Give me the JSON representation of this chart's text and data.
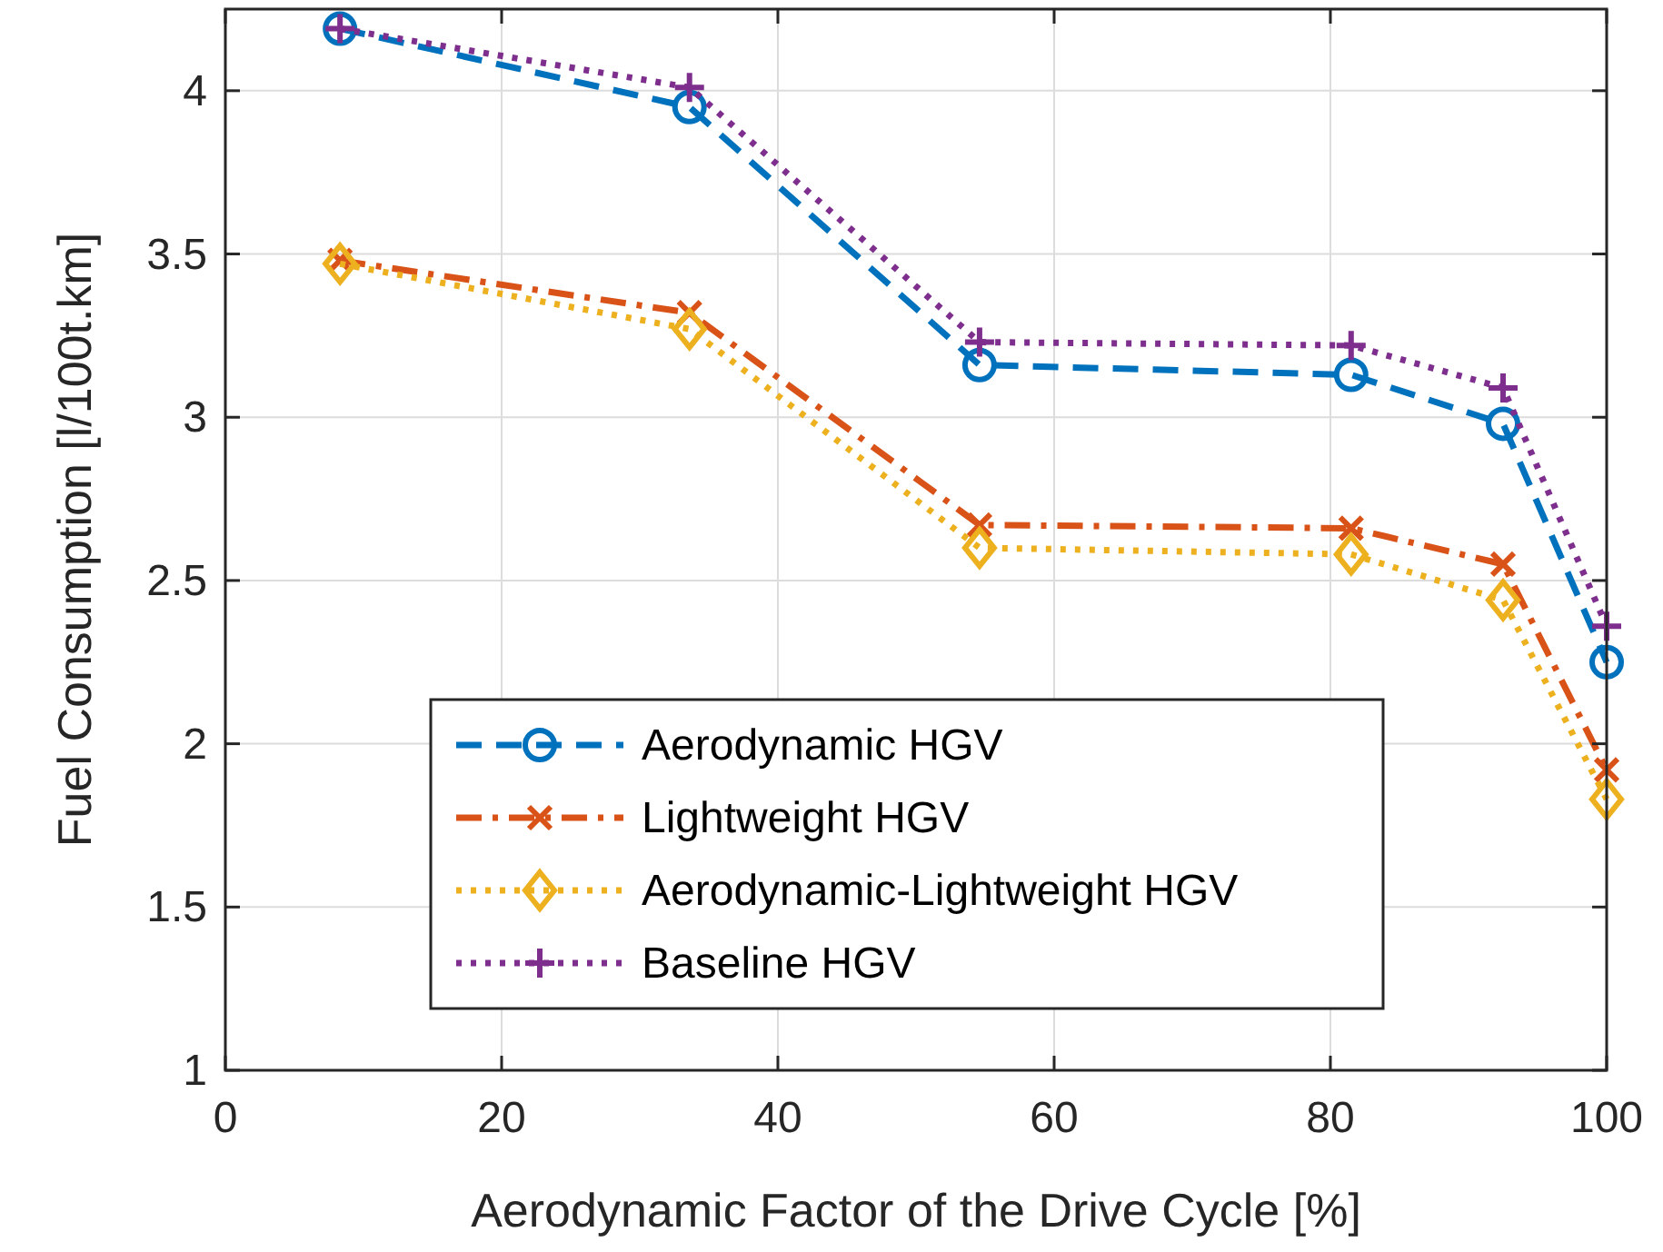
{
  "chart_data": {
    "type": "line",
    "xlabel": "Aerodynamic Factor of the Drive Cycle [%]",
    "ylabel": "Fuel Consumption [l/100t.km]",
    "x": [
      8.3,
      33.6,
      54.6,
      81.5,
      92.5,
      100
    ],
    "xlim": [
      0,
      100
    ],
    "xticks": [
      0,
      20,
      40,
      60,
      80,
      100
    ],
    "ylim": [
      1,
      4.25
    ],
    "yticks": [
      1,
      1.5,
      2,
      2.5,
      3,
      3.5,
      4
    ],
    "grid": true,
    "legend": "bottom",
    "series": [
      {
        "name": "Aerodynamic HGV",
        "color": "#0072bd",
        "marker": "circle",
        "line_style": "dashed",
        "values": [
          4.19,
          3.95,
          3.16,
          3.13,
          2.98,
          2.25
        ]
      },
      {
        "name": "Lightweight HGV",
        "color": "#d95319",
        "marker": "cross",
        "line_style": "dashdot",
        "values": [
          3.48,
          3.32,
          2.67,
          2.66,
          2.55,
          1.92
        ]
      },
      {
        "name": "Aerodynamic-Lightweight HGV",
        "color": "#edb120",
        "marker": "diamond",
        "line_style": "dotted",
        "values": [
          3.47,
          3.27,
          2.6,
          2.58,
          2.44,
          1.83
        ]
      },
      {
        "name": "Baseline HGV",
        "color": "#7e2f8e",
        "marker": "plus",
        "line_style": "dotted",
        "values": [
          4.19,
          4.01,
          3.23,
          3.22,
          3.09,
          2.36
        ]
      }
    ]
  }
}
